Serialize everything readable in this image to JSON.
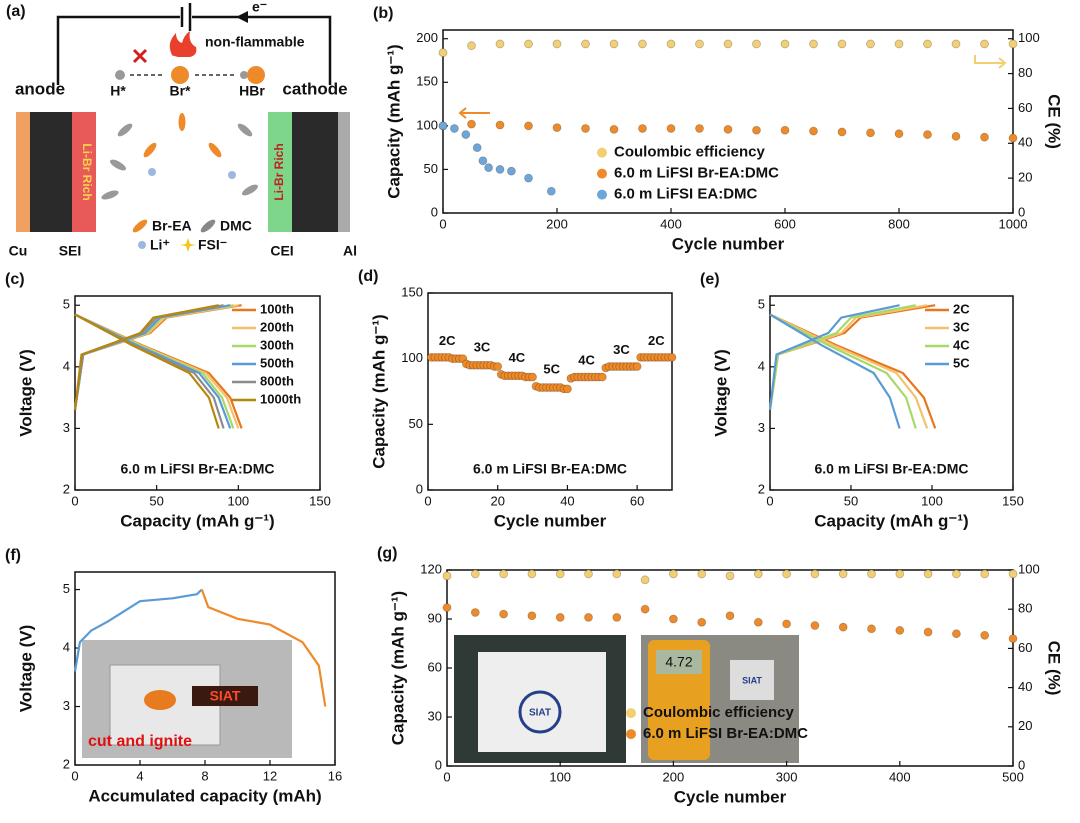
{
  "schematic": {
    "panel": "(a)",
    "electron": "e⁻",
    "non_flammable": "non-flammable",
    "anode": "anode",
    "cathode": "cathode",
    "h_radical": "H*",
    "br_radical": "Br*",
    "hbr": "HBr",
    "sei_rich": "Li-Br Rich",
    "cei_rich": "Li-Br Rich",
    "br_ea": "Br-EA",
    "dmc": "DMC",
    "li_ion": "Li⁺",
    "fsi_ion": "FSI⁻",
    "cu": "Cu",
    "sei": "SEI",
    "cei": "CEI",
    "al": "Al"
  },
  "photos": {
    "ignite_logo": "SIAT",
    "ignite_note": "cut and ignite",
    "meter_reading": "4.72",
    "pouch_logo": "SIAT",
    "meter_logo": "SIAT"
  },
  "chart_data": [
    {
      "type": "scatter",
      "panel": "(b)",
      "x_label": "Cycle number",
      "y_label": "Capacity (mAh g⁻¹)",
      "y2_label": "CE (%)",
      "xlim": [
        0,
        1000
      ],
      "xticks": [
        0,
        200,
        400,
        600,
        800,
        1000
      ],
      "ylim": [
        0,
        210
      ],
      "yticks": [
        0,
        50,
        100,
        150,
        200
      ],
      "y2lim": [
        0,
        105
      ],
      "y2ticks": [
        0,
        20,
        40,
        60,
        80,
        100
      ],
      "legend": "lower center",
      "series": [
        {
          "name": "Coulombic efficiency",
          "color": "#f2cf72",
          "axis": "y2",
          "x": [
            0,
            50,
            100,
            150,
            200,
            250,
            300,
            350,
            400,
            450,
            500,
            550,
            600,
            650,
            700,
            750,
            800,
            850,
            900,
            950,
            1000
          ],
          "values": [
            92,
            96,
            97,
            97,
            97,
            97,
            97,
            97,
            97,
            97,
            97,
            97,
            97,
            97,
            97,
            97,
            97,
            97,
            97,
            97,
            97
          ]
        },
        {
          "name": "6.0 m LiFSI Br-EA:DMC",
          "color": "#ee8a2a",
          "x": [
            0,
            50,
            100,
            150,
            200,
            250,
            300,
            350,
            400,
            450,
            500,
            550,
            600,
            650,
            700,
            750,
            800,
            850,
            900,
            950,
            1000
          ],
          "values": [
            100,
            102,
            101,
            100,
            98,
            97,
            96,
            97,
            97,
            97,
            96,
            95,
            95,
            94,
            93,
            92,
            91,
            90,
            88,
            87,
            86
          ]
        },
        {
          "name": "6.0 m LiFSI EA:DMC",
          "color": "#6fa6d8",
          "x": [
            0,
            20,
            40,
            60,
            70,
            80,
            100,
            120,
            150,
            190
          ],
          "values": [
            100,
            97,
            90,
            75,
            60,
            52,
            50,
            48,
            40,
            25
          ]
        }
      ]
    },
    {
      "type": "line",
      "panel": "(c)",
      "x_label": "Capacity (mAh g⁻¹)",
      "y_label": "Voltage (V)",
      "annotation": "6.0 m LiFSI Br-EA:DMC",
      "xlim": [
        0,
        150
      ],
      "xticks": [
        0,
        50,
        100,
        150
      ],
      "ylim": [
        2,
        5.15
      ],
      "yticks": [
        2,
        3,
        4,
        5
      ],
      "legend": "upper right",
      "series": [
        {
          "name": "100th",
          "color": "#e8761c",
          "x": [
            0,
            5,
            46,
            56,
            102,
            null,
            0,
            41,
            82,
            95,
            102
          ],
          "values": [
            3.3,
            4.2,
            4.55,
            4.8,
            5.0,
            null,
            4.85,
            4.35,
            3.9,
            3.5,
            3.0
          ]
        },
        {
          "name": "200th",
          "color": "#f5c26b",
          "x": [
            0,
            5,
            45,
            55,
            100,
            null,
            0,
            40,
            80,
            93,
            100
          ],
          "values": [
            3.3,
            4.2,
            4.55,
            4.8,
            5.0,
            null,
            4.85,
            4.35,
            3.9,
            3.5,
            3.0
          ]
        },
        {
          "name": "300th",
          "color": "#a6d96a",
          "x": [
            0,
            5,
            44,
            53,
            97,
            null,
            0,
            39,
            78,
            90,
            97
          ],
          "values": [
            3.3,
            4.2,
            4.55,
            4.8,
            5.0,
            null,
            4.85,
            4.35,
            3.9,
            3.5,
            3.0
          ]
        },
        {
          "name": "500th",
          "color": "#5b9bd5",
          "x": [
            0,
            5,
            43,
            52,
            95,
            null,
            0,
            38,
            76,
            88,
            95
          ],
          "values": [
            3.3,
            4.2,
            4.55,
            4.8,
            5.0,
            null,
            4.85,
            4.35,
            3.9,
            3.5,
            3.0
          ]
        },
        {
          "name": "800th",
          "color": "#8c8c8c",
          "x": [
            0,
            5,
            41,
            50,
            91,
            null,
            0,
            36,
            73,
            85,
            91
          ],
          "values": [
            3.3,
            4.2,
            4.55,
            4.8,
            5.0,
            null,
            4.85,
            4.35,
            3.9,
            3.5,
            3.0
          ]
        },
        {
          "name": "1000th",
          "color": "#b8860b",
          "x": [
            0,
            4,
            40,
            48,
            88,
            null,
            0,
            35,
            70,
            82,
            88
          ],
          "values": [
            3.3,
            4.2,
            4.55,
            4.8,
            5.0,
            null,
            4.85,
            4.35,
            3.9,
            3.5,
            3.0
          ]
        }
      ]
    },
    {
      "type": "scatter",
      "panel": "(d)",
      "x_label": "Cycle number",
      "y_label": "Capacity (mAh g⁻¹)",
      "annotation": "6.0 m LiFSI Br-EA:DMC",
      "xlim": [
        0,
        70
      ],
      "xticks": [
        0,
        20,
        40,
        60
      ],
      "ylim": [
        0,
        150
      ],
      "yticks": [
        0,
        50,
        100,
        150
      ],
      "segment_labels": [
        "2C",
        "3C",
        "4C",
        "5C",
        "4C",
        "3C",
        "2C"
      ],
      "series": [
        {
          "color": "#ee8a2a",
          "x": [
            1,
            2,
            3,
            4,
            5,
            6,
            7,
            8,
            9,
            10,
            11,
            12,
            13,
            14,
            15,
            16,
            17,
            18,
            19,
            20,
            21,
            22,
            23,
            24,
            25,
            26,
            27,
            28,
            29,
            30,
            31,
            32,
            33,
            34,
            35,
            36,
            37,
            38,
            39,
            40,
            41,
            42,
            43,
            44,
            45,
            46,
            47,
            48,
            49,
            50,
            51,
            52,
            53,
            54,
            55,
            56,
            57,
            58,
            59,
            60,
            61,
            62,
            63,
            64,
            65,
            66,
            67,
            68,
            69,
            70
          ],
          "values": [
            101,
            101,
            101,
            101,
            101,
            101,
            100,
            100,
            100,
            100,
            96,
            95,
            95,
            95,
            95,
            95,
            95,
            95,
            94,
            94,
            88,
            87,
            87,
            87,
            87,
            87,
            87,
            86,
            86,
            86,
            79,
            78,
            78,
            78,
            78,
            78,
            78,
            78,
            77,
            77,
            85,
            86,
            86,
            86,
            86,
            86,
            86,
            86,
            86,
            86,
            93,
            94,
            94,
            94,
            94,
            94,
            94,
            94,
            94,
            94,
            101,
            101,
            101,
            101,
            101,
            101,
            101,
            101,
            101,
            101
          ]
        }
      ]
    },
    {
      "type": "line",
      "panel": "(e)",
      "x_label": "Capacity (mAh g⁻¹)",
      "y_label": "Voltage (V)",
      "annotation": "6.0 m LiFSI Br-EA:DMC",
      "xlim": [
        0,
        150
      ],
      "xticks": [
        0,
        50,
        100,
        150
      ],
      "ylim": [
        2,
        5.15
      ],
      "yticks": [
        2,
        3,
        4,
        5
      ],
      "legend": "upper right",
      "series": [
        {
          "name": "2C",
          "color": "#e8761c",
          "x": [
            0,
            5,
            46,
            56,
            102,
            null,
            0,
            41,
            82,
            95,
            102
          ],
          "values": [
            3.3,
            4.2,
            4.55,
            4.8,
            5.0,
            null,
            4.85,
            4.35,
            3.9,
            3.5,
            3.0
          ]
        },
        {
          "name": "3C",
          "color": "#f5c26b",
          "x": [
            0,
            5,
            44,
            53,
            97,
            null,
            0,
            39,
            78,
            90,
            97
          ],
          "values": [
            3.3,
            4.2,
            4.55,
            4.8,
            5.0,
            null,
            4.85,
            4.35,
            3.9,
            3.5,
            3.0
          ]
        },
        {
          "name": "4C",
          "color": "#a6d96a",
          "x": [
            0,
            5,
            41,
            50,
            90,
            null,
            0,
            36,
            72,
            84,
            90
          ],
          "values": [
            3.3,
            4.2,
            4.55,
            4.8,
            5.0,
            null,
            4.85,
            4.35,
            3.9,
            3.5,
            3.0
          ]
        },
        {
          "name": "5C",
          "color": "#5b9bd5",
          "x": [
            0,
            4,
            36,
            44,
            80,
            null,
            0,
            32,
            64,
            74,
            80
          ],
          "values": [
            3.3,
            4.2,
            4.55,
            4.8,
            5.0,
            null,
            4.85,
            4.35,
            3.9,
            3.5,
            3.0
          ]
        }
      ]
    },
    {
      "type": "line",
      "panel": "(f)",
      "x_label": "Accumulated capacity (mAh)",
      "y_label": "Voltage (V)",
      "xlim": [
        0,
        16
      ],
      "xticks": [
        0,
        4,
        8,
        12,
        16
      ],
      "ylim": [
        2,
        5.3
      ],
      "yticks": [
        2,
        3,
        4,
        5
      ],
      "series": [
        {
          "color": "#5b9bd5",
          "x": [
            0,
            0.3,
            1,
            2,
            4,
            6,
            7.5,
            7.8
          ],
          "values": [
            3.6,
            4.1,
            4.3,
            4.45,
            4.8,
            4.85,
            4.92,
            5.0
          ]
        },
        {
          "color": "#ee8a2a",
          "x": [
            7.8,
            8.2,
            10,
            12,
            14,
            15,
            15.4
          ],
          "values": [
            5.0,
            4.7,
            4.5,
            4.4,
            4.1,
            3.7,
            3.0
          ]
        }
      ]
    },
    {
      "type": "scatter",
      "panel": "(g)",
      "x_label": "Cycle number",
      "y_label": "Capacity (mAh g⁻¹)",
      "y2_label": "CE (%)",
      "xlim": [
        0,
        500
      ],
      "xticks": [
        0,
        100,
        200,
        300,
        400,
        500
      ],
      "ylim": [
        0,
        120
      ],
      "yticks": [
        0,
        30,
        60,
        90,
        120
      ],
      "y2lim": [
        0,
        100
      ],
      "y2ticks": [
        0,
        20,
        40,
        60,
        80,
        100
      ],
      "legend": "lower right",
      "series": [
        {
          "name": "Coulombic efficiency",
          "color": "#f2cf72",
          "axis": "y2",
          "x": [
            0,
            25,
            50,
            75,
            100,
            125,
            150,
            175,
            200,
            225,
            250,
            275,
            300,
            325,
            350,
            375,
            400,
            425,
            450,
            475,
            500
          ],
          "values": [
            97,
            98,
            98,
            98,
            98,
            98,
            98,
            95,
            98,
            98,
            97,
            98,
            98,
            98,
            98,
            98,
            98,
            98,
            98,
            98,
            98
          ]
        },
        {
          "name": "6.0 m LiFSI Br-EA:DMC",
          "color": "#ee8a2a",
          "x": [
            0,
            25,
            50,
            75,
            100,
            125,
            150,
            175,
            200,
            225,
            250,
            275,
            300,
            325,
            350,
            375,
            400,
            425,
            450,
            475,
            500
          ],
          "values": [
            97,
            94,
            93,
            92,
            91,
            91,
            91,
            96,
            90,
            88,
            92,
            88,
            87,
            86,
            85,
            84,
            83,
            82,
            81,
            80,
            78
          ]
        }
      ]
    }
  ]
}
